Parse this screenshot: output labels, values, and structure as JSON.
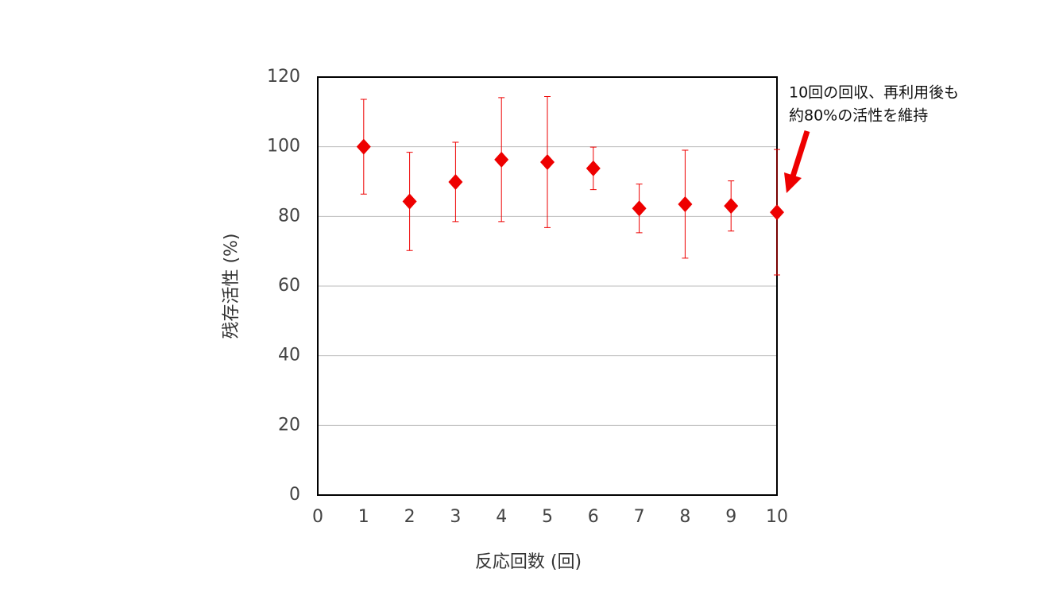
{
  "chart_data": {
    "type": "scatter",
    "xlabel": "反応回数 (回)",
    "ylabel": "残存活性 (%)",
    "annotation": [
      "10回の回収、再利用後も",
      "約80%の活性を維持"
    ],
    "x": [
      1,
      2,
      3,
      4,
      5,
      6,
      7,
      8,
      9,
      10
    ],
    "series": [
      {
        "color": "#ee0000",
        "values": [
          100,
          84.3,
          89.9,
          96.3,
          95.6,
          93.8,
          82.3,
          83.5,
          83,
          81.2
        ],
        "errors": [
          13.6,
          14.1,
          11.4,
          17.8,
          18.8,
          6.1,
          7,
          15.5,
          7.2,
          18
        ]
      }
    ],
    "xlim": [
      0,
      10
    ],
    "xticks": [
      0,
      1,
      2,
      3,
      4,
      5,
      6,
      7,
      8,
      9,
      10
    ],
    "ylim": [
      0,
      120
    ],
    "yticks": [
      0,
      20,
      40,
      60,
      80,
      100,
      120
    ],
    "grid": true
  }
}
